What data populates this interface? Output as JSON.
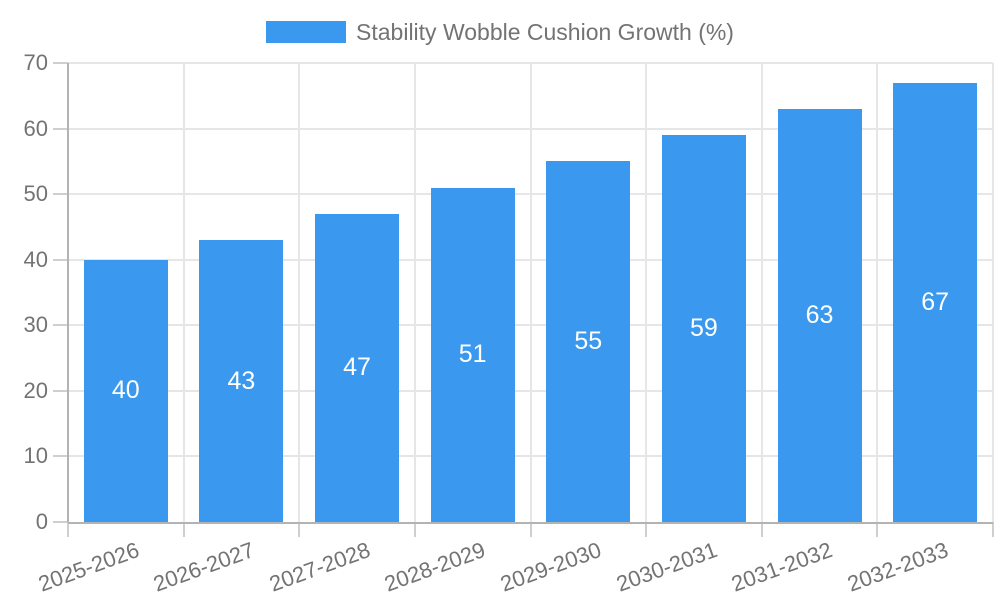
{
  "chart_data": {
    "type": "bar",
    "title": "Stability Wobble Cushion Growth (%)",
    "categories": [
      "2025-2026",
      "2026-2027",
      "2027-2028",
      "2028-2029",
      "2029-2030",
      "2030-2031",
      "2031-2032",
      "2032-2033"
    ],
    "values": [
      40,
      43,
      47,
      51,
      55,
      59,
      63,
      67
    ],
    "xlabel": "",
    "ylabel": "",
    "ylim": [
      0,
      70
    ],
    "yticks": [
      0,
      10,
      20,
      30,
      40,
      50,
      60,
      70
    ],
    "grid": true,
    "legend_position": "top",
    "value_label_position": "inside-center",
    "x_label_rotation_deg": -20,
    "colors": {
      "bar": "#3A99EE",
      "grid": "#e6e6e6",
      "axis": "#b3b3b3",
      "tick": "#cfcfcf",
      "tick_label": "#737373",
      "legend_label": "#737373",
      "value_label": "#ffffff",
      "background": "#ffffff"
    }
  }
}
